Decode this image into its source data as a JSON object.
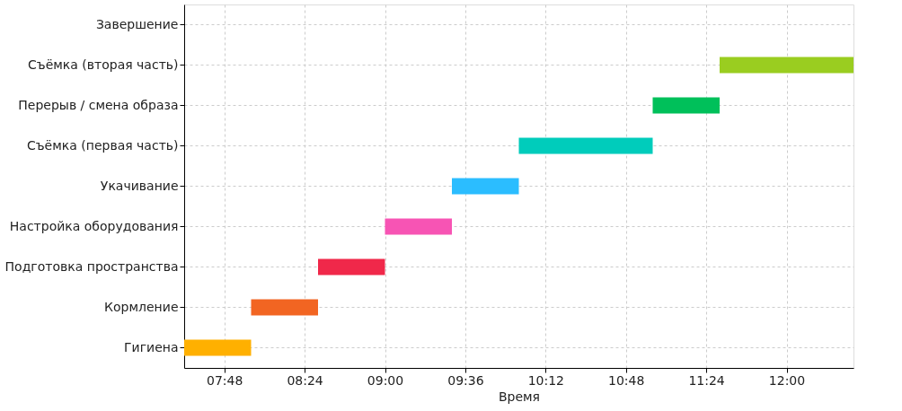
{
  "chart_data": {
    "type": "bar",
    "orientation": "horizontal",
    "xlabel": "Время",
    "categories": [
      "Завершение",
      "Съёмка (вторая часть)",
      "Перерыв / смена образа",
      "Съёмка (первая часть)",
      "Укачивание",
      "Настройка оборудования",
      "Подготовка пространства",
      "Кормление",
      "Гигиена"
    ],
    "base": [
      null,
      11.5,
      11.0,
      10.0,
      9.5,
      9.0,
      8.5,
      8.0,
      7.5
    ],
    "values": [
      null,
      1.0,
      0.5,
      1.0,
      0.5,
      0.5,
      0.5,
      0.5,
      0.5
    ],
    "colors": [
      null,
      "#9acd20",
      "#00c05a",
      "#00ccbb",
      "#2bbdff",
      "#f754b4",
      "#f0284a",
      "#f26522",
      "#ffb000"
    ],
    "xlim": [
      7.5,
      12.5
    ],
    "xticks": [
      {
        "value": 7.8,
        "label": "07:48"
      },
      {
        "value": 8.4,
        "label": "08:24"
      },
      {
        "value": 9.0,
        "label": "09:00"
      },
      {
        "value": 9.6,
        "label": "09:36"
      },
      {
        "value": 10.2,
        "label": "10:12"
      },
      {
        "value": 10.8,
        "label": "10:48"
      },
      {
        "value": 11.4,
        "label": "11:24"
      },
      {
        "value": 12.0,
        "label": "12:00"
      }
    ],
    "grid": true
  }
}
